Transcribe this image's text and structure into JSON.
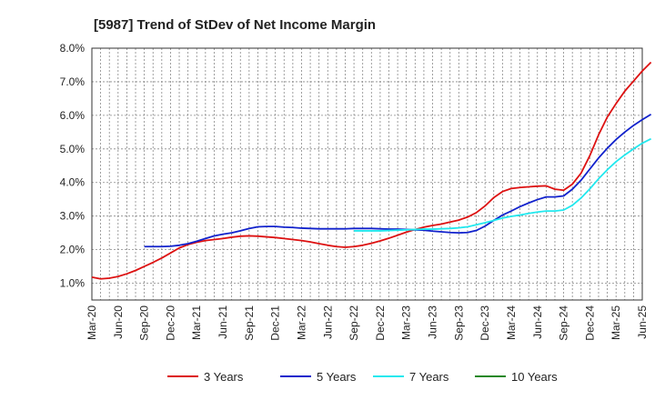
{
  "chart_data": {
    "type": "line",
    "title": "[5987]  Trend of StDev of Net Income Margin",
    "xlabel": "",
    "ylabel": "",
    "y_unit": "%",
    "ylim": [
      0.5,
      8.0
    ],
    "yticks": [
      1.0,
      2.0,
      3.0,
      4.0,
      5.0,
      6.0,
      7.0,
      8.0
    ],
    "ytick_labels": [
      "1.0%",
      "2.0%",
      "3.0%",
      "4.0%",
      "5.0%",
      "6.0%",
      "7.0%",
      "8.0%"
    ],
    "xtick_labels": [
      "Mar-20",
      "Jun-20",
      "Sep-20",
      "Dec-20",
      "Mar-21",
      "Jun-21",
      "Sep-21",
      "Dec-21",
      "Mar-22",
      "Jun-22",
      "Sep-22",
      "Dec-22",
      "Mar-23",
      "Jun-23",
      "Sep-23",
      "Dec-23",
      "Mar-24",
      "Jun-24",
      "Sep-24",
      "Dec-24",
      "Mar-25",
      "Jun-25"
    ],
    "grid": true,
    "legend_position": "bottom",
    "series": [
      {
        "name": "3 Years",
        "color": "#dd1111",
        "points": [
          [
            0,
            1.18
          ],
          [
            1,
            1.13
          ],
          [
            2,
            1.15
          ],
          [
            3,
            1.2
          ],
          [
            4,
            1.28
          ],
          [
            5,
            1.38
          ],
          [
            6,
            1.5
          ],
          [
            7,
            1.62
          ],
          [
            8,
            1.75
          ],
          [
            9,
            1.9
          ],
          [
            10,
            2.05
          ],
          [
            11,
            2.15
          ],
          [
            12,
            2.22
          ],
          [
            13,
            2.27
          ],
          [
            14,
            2.3
          ],
          [
            15,
            2.33
          ],
          [
            16,
            2.37
          ],
          [
            17,
            2.4
          ],
          [
            18,
            2.41
          ],
          [
            19,
            2.4
          ],
          [
            20,
            2.38
          ],
          [
            21,
            2.36
          ],
          [
            22,
            2.33
          ],
          [
            23,
            2.3
          ],
          [
            24,
            2.27
          ],
          [
            25,
            2.23
          ],
          [
            26,
            2.18
          ],
          [
            27,
            2.13
          ],
          [
            28,
            2.09
          ],
          [
            29,
            2.07
          ],
          [
            30,
            2.09
          ],
          [
            31,
            2.13
          ],
          [
            32,
            2.19
          ],
          [
            33,
            2.26
          ],
          [
            34,
            2.34
          ],
          [
            35,
            2.43
          ],
          [
            36,
            2.52
          ],
          [
            37,
            2.6
          ],
          [
            38,
            2.67
          ],
          [
            39,
            2.72
          ],
          [
            40,
            2.76
          ],
          [
            41,
            2.82
          ],
          [
            42,
            2.88
          ],
          [
            43,
            2.97
          ],
          [
            44,
            3.1
          ],
          [
            45,
            3.3
          ],
          [
            46,
            3.55
          ],
          [
            47,
            3.73
          ],
          [
            48,
            3.82
          ],
          [
            49,
            3.85
          ],
          [
            50,
            3.87
          ],
          [
            51,
            3.89
          ],
          [
            52,
            3.9
          ],
          [
            53,
            3.8
          ],
          [
            54,
            3.77
          ],
          [
            55,
            3.95
          ],
          [
            56,
            4.28
          ],
          [
            57,
            4.8
          ],
          [
            58,
            5.42
          ],
          [
            59,
            5.95
          ],
          [
            60,
            6.35
          ],
          [
            61,
            6.72
          ],
          [
            62,
            7.02
          ],
          [
            63,
            7.32
          ],
          [
            64,
            7.58
          ]
        ]
      },
      {
        "name": "5 Years",
        "color": "#1122cc",
        "points": [
          [
            6,
            2.09
          ],
          [
            7,
            2.09
          ],
          [
            8,
            2.09
          ],
          [
            9,
            2.1
          ],
          [
            10,
            2.13
          ],
          [
            11,
            2.18
          ],
          [
            12,
            2.25
          ],
          [
            13,
            2.33
          ],
          [
            14,
            2.41
          ],
          [
            15,
            2.46
          ],
          [
            16,
            2.5
          ],
          [
            17,
            2.56
          ],
          [
            18,
            2.63
          ],
          [
            19,
            2.68
          ],
          [
            20,
            2.69
          ],
          [
            21,
            2.69
          ],
          [
            22,
            2.67
          ],
          [
            23,
            2.66
          ],
          [
            24,
            2.64
          ],
          [
            25,
            2.63
          ],
          [
            26,
            2.62
          ],
          [
            27,
            2.62
          ],
          [
            28,
            2.62
          ],
          [
            29,
            2.62
          ],
          [
            30,
            2.63
          ],
          [
            31,
            2.63
          ],
          [
            32,
            2.63
          ],
          [
            33,
            2.62
          ],
          [
            34,
            2.61
          ],
          [
            35,
            2.61
          ],
          [
            36,
            2.6
          ],
          [
            37,
            2.59
          ],
          [
            38,
            2.58
          ],
          [
            39,
            2.55
          ],
          [
            40,
            2.53
          ],
          [
            41,
            2.51
          ],
          [
            42,
            2.5
          ],
          [
            43,
            2.51
          ],
          [
            44,
            2.57
          ],
          [
            45,
            2.7
          ],
          [
            46,
            2.87
          ],
          [
            47,
            3.03
          ],
          [
            48,
            3.15
          ],
          [
            49,
            3.28
          ],
          [
            50,
            3.39
          ],
          [
            51,
            3.49
          ],
          [
            52,
            3.57
          ],
          [
            53,
            3.57
          ],
          [
            54,
            3.6
          ],
          [
            55,
            3.8
          ],
          [
            56,
            4.07
          ],
          [
            57,
            4.4
          ],
          [
            58,
            4.73
          ],
          [
            59,
            5.02
          ],
          [
            60,
            5.28
          ],
          [
            61,
            5.5
          ],
          [
            62,
            5.7
          ],
          [
            63,
            5.87
          ],
          [
            64,
            6.03
          ]
        ]
      },
      {
        "name": "7 Years",
        "color": "#22e8ee",
        "points": [
          [
            30,
            2.56
          ],
          [
            31,
            2.56
          ],
          [
            32,
            2.56
          ],
          [
            33,
            2.56
          ],
          [
            34,
            2.57
          ],
          [
            35,
            2.58
          ],
          [
            36,
            2.59
          ],
          [
            37,
            2.6
          ],
          [
            38,
            2.61
          ],
          [
            39,
            2.61
          ],
          [
            40,
            2.62
          ],
          [
            41,
            2.63
          ],
          [
            42,
            2.65
          ],
          [
            43,
            2.68
          ],
          [
            44,
            2.74
          ],
          [
            45,
            2.8
          ],
          [
            46,
            2.87
          ],
          [
            47,
            2.94
          ],
          [
            48,
            2.99
          ],
          [
            49,
            3.03
          ],
          [
            50,
            3.08
          ],
          [
            51,
            3.12
          ],
          [
            52,
            3.15
          ],
          [
            53,
            3.15
          ],
          [
            54,
            3.18
          ],
          [
            55,
            3.32
          ],
          [
            56,
            3.54
          ],
          [
            57,
            3.81
          ],
          [
            58,
            4.11
          ],
          [
            59,
            4.38
          ],
          [
            60,
            4.62
          ],
          [
            61,
            4.82
          ],
          [
            62,
            5.0
          ],
          [
            63,
            5.17
          ],
          [
            64,
            5.3
          ]
        ]
      },
      {
        "name": "10 Years",
        "color": "#228822",
        "points": []
      }
    ]
  }
}
